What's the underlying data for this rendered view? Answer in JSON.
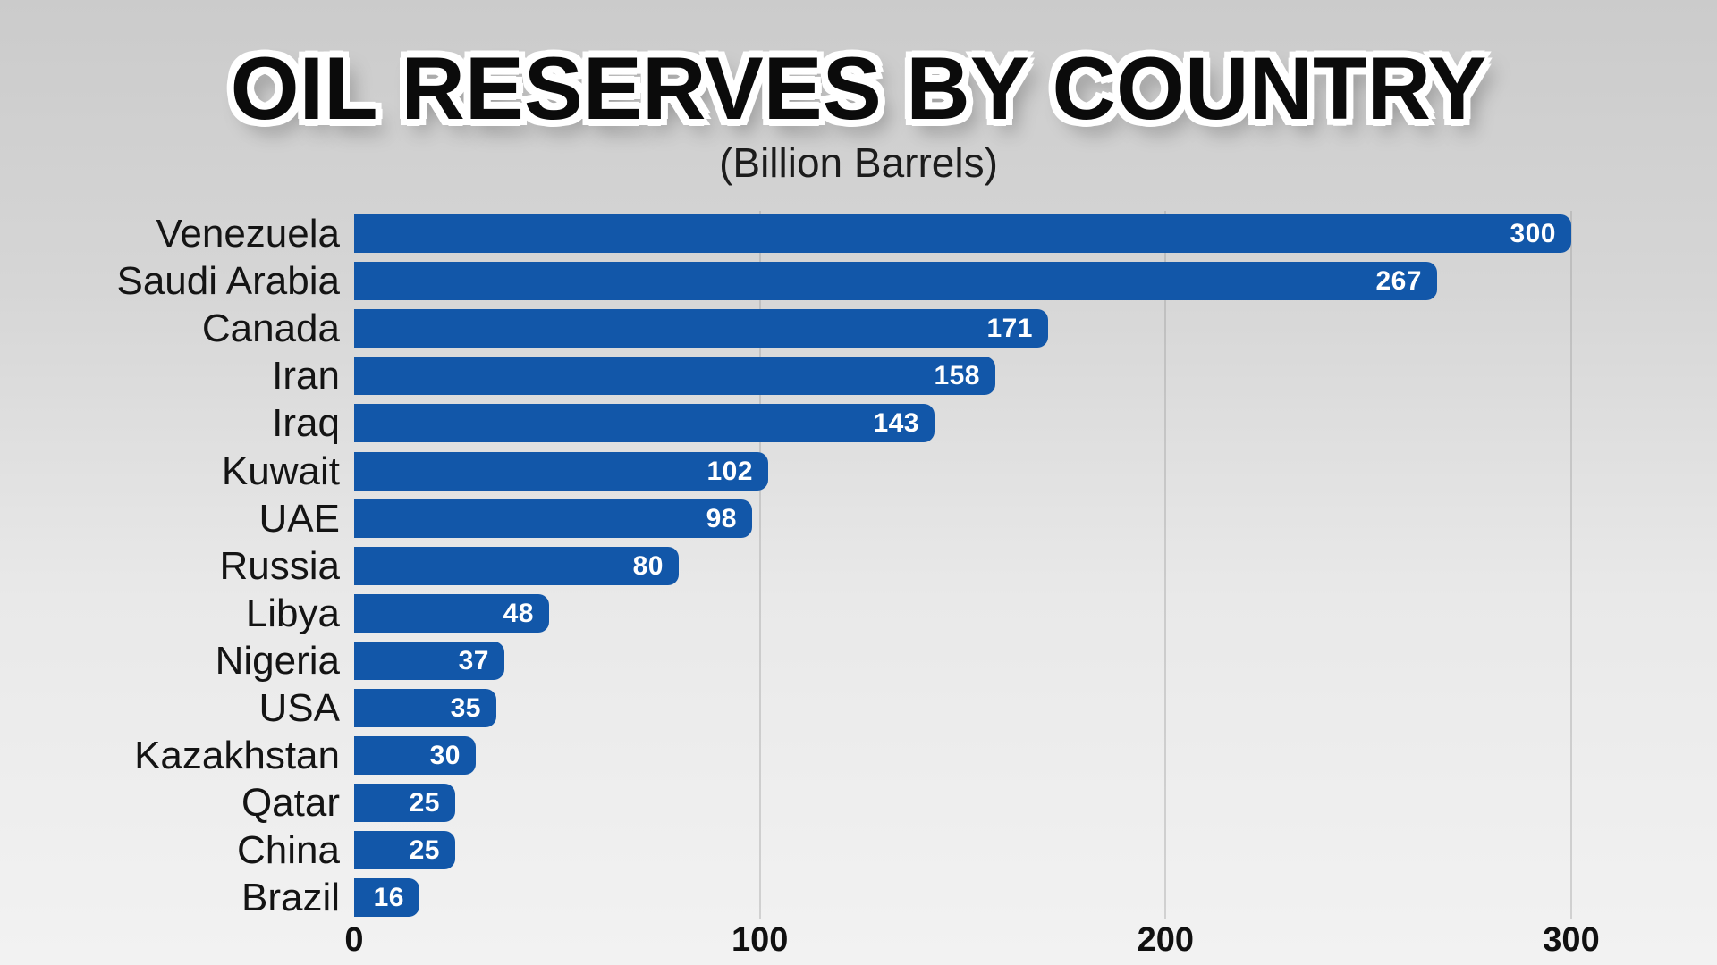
{
  "header": {
    "title": "OIL RESERVES BY COUNTRY",
    "subtitle": "(Billion Barrels)"
  },
  "chart_data": {
    "type": "bar",
    "orientation": "horizontal",
    "title": "OIL RESERVES BY COUNTRY",
    "subtitle": "(Billion Barrels)",
    "unit": "Billion Barrels",
    "categories": [
      "Venezuela",
      "Saudi Arabia",
      "Canada",
      "Iran",
      "Iraq",
      "Kuwait",
      "UAE",
      "Russia",
      "Libya",
      "Nigeria",
      "USA",
      "Kazakhstan",
      "Qatar",
      "China",
      "Brazil"
    ],
    "values": [
      300,
      267,
      171,
      158,
      143,
      102,
      98,
      80,
      48,
      37,
      35,
      30,
      25,
      25,
      16
    ],
    "xlabel": "",
    "ylabel": "",
    "xlim": [
      0,
      300
    ],
    "x_ticks": [
      0,
      100,
      200,
      300
    ],
    "grid": "vertical-at-100-200-300",
    "legend": "none",
    "colors": {
      "bar": "#1257a9",
      "value_label": "#ffffff",
      "category_label": "#141414",
      "tick_label": "#101010",
      "title": "#0b0b0b",
      "gridline": "#c2c2c2",
      "background_top": "#cbcbcb",
      "background_bottom": "#f2f2f2"
    }
  }
}
